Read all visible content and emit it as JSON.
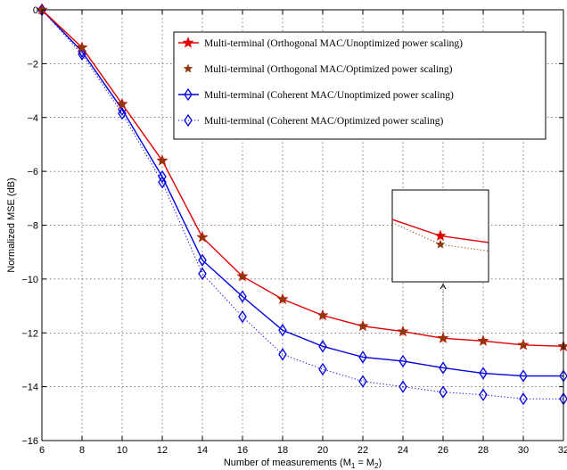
{
  "chart_data": {
    "type": "line",
    "title": "",
    "xlabel": "Number of measurements (M",
    "xlabel_sub1": "1",
    "xlabel_mid": " = M",
    "xlabel_sub2": "2",
    "xlabel_end": ")",
    "ylabel": "Normalized MSE (dB)",
    "xlim": [
      6,
      32
    ],
    "ylim": [
      -16,
      0
    ],
    "grid": true,
    "legend_position": "top-right",
    "x_ticks": [
      6,
      8,
      10,
      12,
      14,
      16,
      18,
      20,
      22,
      24,
      26,
      28,
      30,
      32
    ],
    "y_ticks": [
      0,
      -2,
      -4,
      -6,
      -8,
      -10,
      -12,
      -14,
      -16
    ],
    "x": [
      6,
      8,
      10,
      12,
      14,
      16,
      18,
      20,
      22,
      24,
      26,
      28,
      30,
      32
    ],
    "series": [
      {
        "name": "Multi-terminal (Orthogonal MAC/Unoptimized power scaling)",
        "color": "#e00000",
        "line": "solid",
        "marker": "star-filled",
        "values": [
          0,
          -1.4,
          -3.5,
          -5.6,
          -8.45,
          -9.9,
          -10.75,
          -11.35,
          -11.75,
          -11.95,
          -12.2,
          -12.3,
          -12.45,
          -12.5
        ]
      },
      {
        "name": "Multi-terminal (Orthogonal MAC/Optimized power scaling)",
        "color": "#8b3a0f",
        "line": "none",
        "marker": "star-filled",
        "values": [
          0,
          -1.4,
          -3.5,
          -5.6,
          -8.45,
          -9.9,
          -10.75,
          -11.35,
          -11.75,
          -11.95,
          -12.2,
          -12.3,
          -12.45,
          -12.5
        ]
      },
      {
        "name": "Multi-terminal (Coherent MAC/Unoptimized power scaling)",
        "color": "#0000e0",
        "line": "solid",
        "marker": "diamond-open",
        "values": [
          0,
          -1.55,
          -3.7,
          -6.2,
          -9.3,
          -10.65,
          -11.9,
          -12.5,
          -12.9,
          -13.05,
          -13.3,
          -13.5,
          -13.6,
          -13.6
        ]
      },
      {
        "name": "Multi-terminal (Coherent MAC/Optimized power scaling)",
        "color": "#0000e0",
        "line": "dotted",
        "marker": "diamond-open",
        "values": [
          0,
          -1.65,
          -3.85,
          -6.4,
          -9.8,
          -11.4,
          -12.8,
          -13.35,
          -13.8,
          -14.0,
          -14.2,
          -14.3,
          -14.45,
          -14.45
        ]
      }
    ],
    "inset": {
      "description_marker": "zoom",
      "x_range": [
        25,
        27
      ],
      "y_range": [
        -11.5,
        -12.9
      ]
    }
  }
}
